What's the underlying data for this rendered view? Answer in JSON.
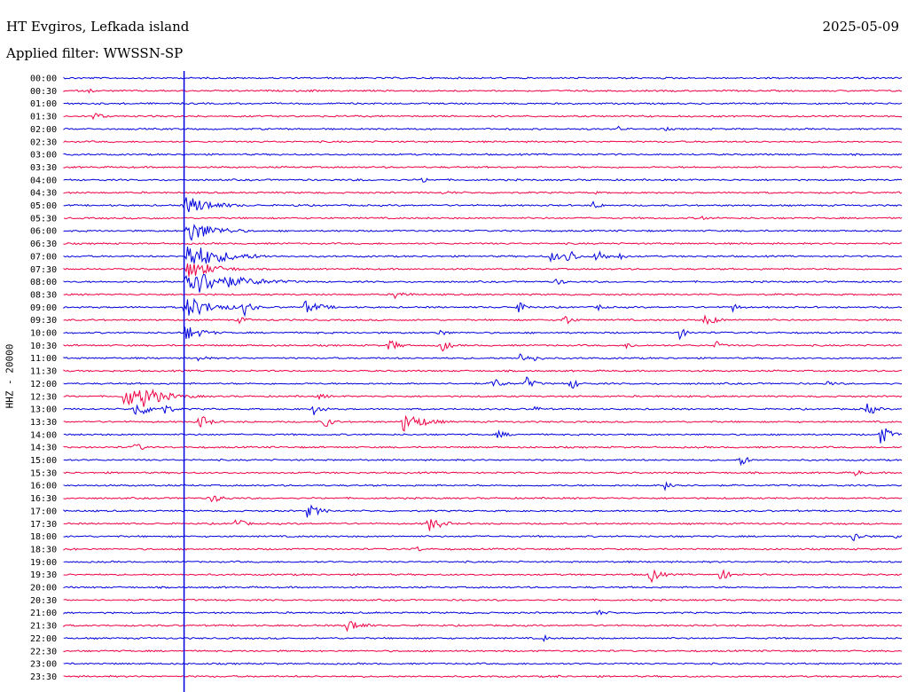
{
  "header": {
    "station": "HT Evgiros, Lefkada island",
    "date": "2025-05-09",
    "filter": "Applied filter: WWSSN-SP"
  },
  "chart_data": {
    "type": "line",
    "ylabel": "HHZ - 20000",
    "row_labels": [
      "00:00",
      "00:30",
      "01:00",
      "01:30",
      "02:00",
      "02:30",
      "03:00",
      "03:30",
      "04:00",
      "04:30",
      "05:00",
      "05:30",
      "06:00",
      "06:30",
      "07:00",
      "07:30",
      "08:00",
      "08:30",
      "09:00",
      "09:30",
      "10:00",
      "10:30",
      "11:00",
      "11:30",
      "12:00",
      "12:30",
      "13:00",
      "13:30",
      "14:00",
      "14:30",
      "15:00",
      "15:30",
      "16:00",
      "16:30",
      "17:00",
      "17:30",
      "18:00",
      "18:30",
      "19:00",
      "19:30",
      "20:00",
      "20:30",
      "21:00",
      "21:30",
      "22:00",
      "22:30",
      "23:00",
      "23:30"
    ],
    "x_range_minutes": [
      0,
      30
    ],
    "trace_colors": [
      "#0000dd",
      "#ee0044"
    ],
    "marker": {
      "row": 0,
      "minute": 4.3,
      "color": "#0000dd"
    },
    "events": [
      {
        "row": 1,
        "minute": 0.9,
        "amp": 3,
        "dur": 0.3
      },
      {
        "row": 3,
        "minute": 1.0,
        "amp": 6,
        "dur": 0.6
      },
      {
        "row": 1,
        "minute": 8.8,
        "amp": 2,
        "dur": 0.6
      },
      {
        "row": 4,
        "minute": 19.8,
        "amp": 4,
        "dur": 0.4
      },
      {
        "row": 4,
        "minute": 21.5,
        "amp": 3,
        "dur": 0.3
      },
      {
        "row": 6,
        "minute": 18.0,
        "amp": 1.5,
        "dur": 0.3
      },
      {
        "row": 8,
        "minute": 12.8,
        "amp": 6,
        "dur": 0.3
      },
      {
        "row": 8,
        "minute": 10.5,
        "amp": 2,
        "dur": 0.6
      },
      {
        "row": 9,
        "minute": 13.5,
        "amp": 2,
        "dur": 1.5
      },
      {
        "row": 9,
        "minute": 19.0,
        "amp": 2,
        "dur": 0.3
      },
      {
        "row": 10,
        "minute": 18.9,
        "amp": 6,
        "dur": 0.5
      },
      {
        "row": 10,
        "minute": 8.2,
        "amp": 3,
        "dur": 0.3
      },
      {
        "row": 11,
        "minute": 3.0,
        "amp": 2,
        "dur": 0.8
      },
      {
        "row": 11,
        "minute": 22.8,
        "amp": 5,
        "dur": 0.3
      },
      {
        "row": 10,
        "minute": 4.3,
        "amp": 12,
        "dur": 1.5
      },
      {
        "row": 12,
        "minute": 4.4,
        "amp": 14,
        "dur": 1.5
      },
      {
        "row": 14,
        "minute": 4.4,
        "amp": 16,
        "dur": 2.0
      },
      {
        "row": 15,
        "minute": 4.4,
        "amp": 12,
        "dur": 1.5
      },
      {
        "row": 16,
        "minute": 4.3,
        "amp": 18,
        "dur": 2.5
      },
      {
        "row": 18,
        "minute": 4.3,
        "amp": 14,
        "dur": 1.5
      },
      {
        "row": 20,
        "minute": 4.3,
        "amp": 10,
        "dur": 1.0
      },
      {
        "row": 14,
        "minute": 17.4,
        "amp": 7,
        "dur": 0.6
      },
      {
        "row": 14,
        "minute": 18.0,
        "amp": 14,
        "dur": 0.4
      },
      {
        "row": 14,
        "minute": 19.0,
        "amp": 11,
        "dur": 0.5
      },
      {
        "row": 14,
        "minute": 19.8,
        "amp": 6,
        "dur": 0.4
      },
      {
        "row": 16,
        "minute": 17.6,
        "amp": 5,
        "dur": 0.5
      },
      {
        "row": 17,
        "minute": 11.8,
        "amp": 5,
        "dur": 0.8
      },
      {
        "row": 18,
        "minute": 6.4,
        "amp": 12,
        "dur": 0.5
      },
      {
        "row": 18,
        "minute": 8.6,
        "amp": 8,
        "dur": 1.0
      },
      {
        "row": 18,
        "minute": 16.2,
        "amp": 7,
        "dur": 0.6
      },
      {
        "row": 18,
        "minute": 19.1,
        "amp": 5,
        "dur": 0.4
      },
      {
        "row": 19,
        "minute": 6.2,
        "amp": 5,
        "dur": 0.6
      },
      {
        "row": 19,
        "minute": 22.9,
        "amp": 9,
        "dur": 0.6
      },
      {
        "row": 18,
        "minute": 23.9,
        "amp": 6,
        "dur": 0.4
      },
      {
        "row": 20,
        "minute": 22.0,
        "amp": 8,
        "dur": 0.4
      },
      {
        "row": 20,
        "minute": 8.9,
        "amp": 2,
        "dur": 0.6
      },
      {
        "row": 20,
        "minute": 13.4,
        "amp": 5,
        "dur": 0.5
      },
      {
        "row": 19,
        "minute": 17.8,
        "amp": 9,
        "dur": 0.5
      },
      {
        "row": 21,
        "minute": 11.6,
        "amp": 8,
        "dur": 0.6
      },
      {
        "row": 21,
        "minute": 13.5,
        "amp": 8,
        "dur": 0.5
      },
      {
        "row": 21,
        "minute": 20.1,
        "amp": 4,
        "dur": 0.6
      },
      {
        "row": 21,
        "minute": 23.3,
        "amp": 6,
        "dur": 0.4
      },
      {
        "row": 22,
        "minute": 4.8,
        "amp": 4,
        "dur": 0.6
      },
      {
        "row": 22,
        "minute": 16.3,
        "amp": 8,
        "dur": 0.4
      },
      {
        "row": 22,
        "minute": 16.8,
        "amp": 6,
        "dur": 0.4
      },
      {
        "row": 24,
        "minute": 15.3,
        "amp": 9,
        "dur": 0.5
      },
      {
        "row": 24,
        "minute": 16.5,
        "amp": 9,
        "dur": 0.5
      },
      {
        "row": 24,
        "minute": 18.1,
        "amp": 9,
        "dur": 0.4
      },
      {
        "row": 24,
        "minute": 27.3,
        "amp": 4,
        "dur": 0.5
      },
      {
        "row": 25,
        "minute": 2.1,
        "amp": 12,
        "dur": 2.0
      },
      {
        "row": 25,
        "minute": 2.8,
        "amp": 14,
        "dur": 1.2
      },
      {
        "row": 25,
        "minute": 9.1,
        "amp": 4,
        "dur": 0.6
      },
      {
        "row": 26,
        "minute": 2.5,
        "amp": 10,
        "dur": 1.0
      },
      {
        "row": 26,
        "minute": 3.5,
        "amp": 8,
        "dur": 0.6
      },
      {
        "row": 26,
        "minute": 8.9,
        "amp": 9,
        "dur": 0.5
      },
      {
        "row": 26,
        "minute": 16.8,
        "amp": 5,
        "dur": 0.4
      },
      {
        "row": 26,
        "minute": 28.7,
        "amp": 10,
        "dur": 0.5
      },
      {
        "row": 27,
        "minute": 4.8,
        "amp": 10,
        "dur": 0.6
      },
      {
        "row": 27,
        "minute": 12.1,
        "amp": 12,
        "dur": 1.2
      },
      {
        "row": 27,
        "minute": 9.3,
        "amp": 8,
        "dur": 0.5
      },
      {
        "row": 28,
        "minute": 29.2,
        "amp": 12,
        "dur": 0.6
      },
      {
        "row": 28,
        "minute": 15.5,
        "amp": 5,
        "dur": 0.6
      },
      {
        "row": 29,
        "minute": 2.5,
        "amp": 6,
        "dur": 0.6
      },
      {
        "row": 30,
        "minute": 24.2,
        "amp": 8,
        "dur": 0.4
      },
      {
        "row": 31,
        "minute": 28.3,
        "amp": 4,
        "dur": 0.6
      },
      {
        "row": 32,
        "minute": 21.5,
        "amp": 5,
        "dur": 0.8
      },
      {
        "row": 32,
        "minute": 16.9,
        "amp": 2,
        "dur": 0.4
      },
      {
        "row": 33,
        "minute": 5.2,
        "amp": 6,
        "dur": 0.8
      },
      {
        "row": 34,
        "minute": 8.7,
        "amp": 8,
        "dur": 0.8
      },
      {
        "row": 35,
        "minute": 6.1,
        "amp": 7,
        "dur": 0.6
      },
      {
        "row": 35,
        "minute": 13.0,
        "amp": 10,
        "dur": 0.8
      },
      {
        "row": 36,
        "minute": 28.2,
        "amp": 7,
        "dur": 0.6
      },
      {
        "row": 36,
        "minute": 29.7,
        "amp": 3,
        "dur": 0.6
      },
      {
        "row": 37,
        "minute": 12.5,
        "amp": 5,
        "dur": 0.5
      },
      {
        "row": 37,
        "minute": 0.2,
        "amp": 2,
        "dur": 0.6
      },
      {
        "row": 39,
        "minute": 20.9,
        "amp": 12,
        "dur": 0.6
      },
      {
        "row": 39,
        "minute": 23.4,
        "amp": 8,
        "dur": 0.6
      },
      {
        "row": 42,
        "minute": 19.0,
        "amp": 4,
        "dur": 0.8
      },
      {
        "row": 43,
        "minute": 10.1,
        "amp": 9,
        "dur": 0.8
      },
      {
        "row": 44,
        "minute": 17.1,
        "amp": 5,
        "dur": 0.4
      },
      {
        "row": 47,
        "minute": 17.6,
        "amp": 2,
        "dur": 0.6
      }
    ]
  }
}
